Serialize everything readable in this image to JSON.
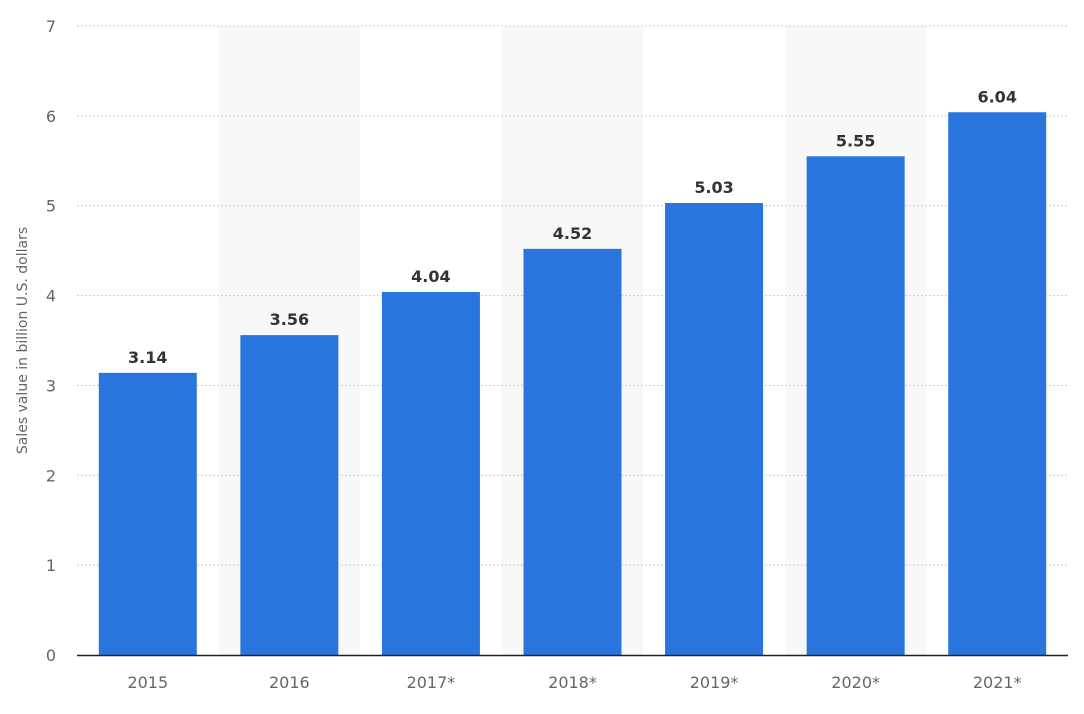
{
  "chart_data": {
    "type": "bar",
    "categories": [
      "2015",
      "2016",
      "2017*",
      "2018*",
      "2019*",
      "2020*",
      "2021*"
    ],
    "values": [
      3.14,
      3.56,
      4.04,
      4.52,
      5.03,
      5.55,
      6.04
    ],
    "value_labels": [
      "3.14",
      "3.56",
      "4.04",
      "4.52",
      "5.03",
      "5.55",
      "6.04"
    ],
    "title": "",
    "xlabel": "",
    "ylabel": "Sales value in billion U.S. dollars",
    "ylim": [
      0,
      7
    ],
    "yticks": [
      "0",
      "1",
      "2",
      "3",
      "4",
      "5",
      "6",
      "7"
    ],
    "grid": true,
    "legend": "none",
    "colors": {
      "bar": "#2876dd",
      "band": "#f8f8f8",
      "grid": "#cccccc",
      "axis": "#222222",
      "tick_text": "#666666",
      "value_text": "#333333"
    }
  }
}
